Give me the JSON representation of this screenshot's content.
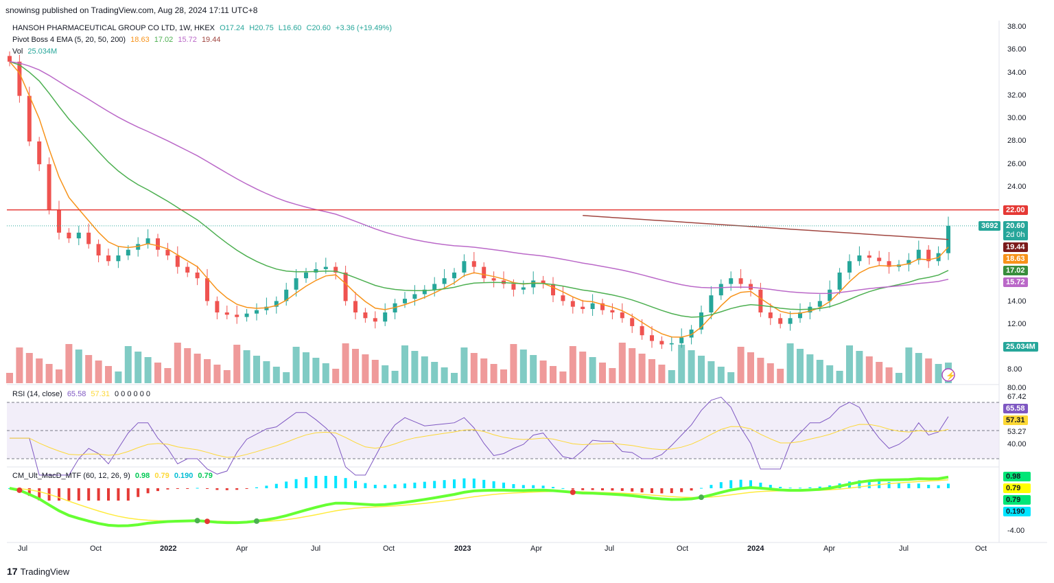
{
  "publisher": "snowinsg published on TradingView.com, Aug 28, 2024 17:11 UTC+8",
  "symbol_line": {
    "name": "HANSOH PHARMACEUTICAL GROUP CO LTD, 1W, HKEX",
    "open": "O17.24",
    "high": "H20.75",
    "low": "L16.60",
    "close": "C20.60",
    "change": "+3.36 (+19.49%)"
  },
  "ema_legend": {
    "label": "Pivot Boss 4 EMA (5, 20, 50, 200)",
    "values": [
      "18.63",
      "17.02",
      "15.72",
      "19.44"
    ]
  },
  "vol_legend": {
    "label": "Vol",
    "value": "25.034M"
  },
  "rsi_legend": {
    "label": "RSI (14, close)",
    "v1": "65.58",
    "v2": "57.31",
    "zeros": "0 0 0 0 0 0"
  },
  "macd_legend": {
    "label": "CM_Ult_MacD_MTF (60, 12, 26, 9)",
    "v1": "0.98",
    "v2": "0.79",
    "v3": "0.190",
    "v4": "0.79"
  },
  "price_axis": [
    "38.00",
    "36.00",
    "34.00",
    "32.00",
    "30.00",
    "28.00",
    "26.00",
    "24.00",
    "14.00",
    "12.00",
    "8.00"
  ],
  "rsi_axis": [
    "80.00",
    "67.42",
    "53.27",
    "40.00"
  ],
  "macd_axis": [
    "-4.00"
  ],
  "time_axis": [
    "Jul",
    "Oct",
    "2022",
    "Apr",
    "Jul",
    "Oct",
    "2023",
    "Apr",
    "Jul",
    "Oct",
    "2024",
    "Apr",
    "Jul",
    "Oct"
  ],
  "tags": {
    "resistance": "22.00",
    "countdown_id": "3692",
    "last": "20.60",
    "last_sub": "2d 0h",
    "ema200": "19.44",
    "ema5": "18.63",
    "ema20": "17.02",
    "ema50": "15.72",
    "vol": "25.034M",
    "rsi1": "65.58",
    "rsi2": "57.31",
    "macd1": "0.98",
    "macd2": "0.79",
    "macd3": "0.79",
    "macd4": "0.190"
  },
  "colors": {
    "up": "#26a69a",
    "down": "#ef5350",
    "ema5": "#f7931a",
    "ema20": "#4caf50",
    "ema50": "#ba68c8",
    "ema200": "#a0453f",
    "resistance": "#e53935"
  },
  "footer": "TradingView",
  "chart_data": {
    "type": "line",
    "title": "HANSOH PHARMACEUTICAL GROUP CO LTD, 1W, HKEX",
    "ylim": [
      7,
      39
    ],
    "resistance": 22.0,
    "close_weekly_approx": [
      35,
      32,
      28,
      26,
      22,
      20,
      19.5,
      20,
      19,
      18,
      17.5,
      18,
      18.5,
      19,
      19.5,
      18.5,
      18,
      17,
      16.5,
      16,
      14,
      13,
      12.8,
      12.6,
      12.9,
      13.2,
      13.5,
      14,
      15,
      16,
      16.5,
      16.8,
      17,
      16.5,
      14,
      13,
      12.5,
      12.2,
      13,
      13.8,
      14.2,
      14.6,
      15,
      15.5,
      16,
      16.5,
      17.5,
      17,
      16,
      15.8,
      15.5,
      15,
      15.2,
      15.8,
      15.5,
      14.5,
      14,
      13.5,
      13.3,
      13.8,
      13.2,
      13,
      12.5,
      11.8,
      11,
      10.5,
      10.2,
      10.3,
      10.8,
      11.5,
      13,
      14.5,
      15.5,
      16,
      15.5,
      15,
      13,
      12.5,
      12,
      12.5,
      13,
      13.5,
      14,
      15,
      16.5,
      17.5,
      18,
      17.8,
      17.5,
      17,
      17.2,
      17.6,
      18.5,
      17.5,
      18.2,
      20.6
    ],
    "series": [
      {
        "name": "EMA 5",
        "last": 18.63
      },
      {
        "name": "EMA 20",
        "last": 17.02
      },
      {
        "name": "EMA 50",
        "last": 15.72
      },
      {
        "name": "EMA 200",
        "last": 19.44
      }
    ]
  }
}
